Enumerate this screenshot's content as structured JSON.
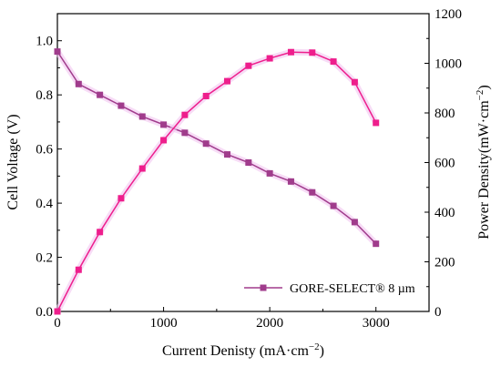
{
  "chart_data": {
    "type": "line",
    "title": "",
    "xlabel": "Current Denisty (mA·cm",
    "xlabel_sup": "−2",
    "xlabel_end": ")",
    "ylabel_left": "Cell Voltage (V)",
    "ylabel_right": "Power Density(mW·cm",
    "ylabel_right_sup": "−2",
    "ylabel_right_end": ")",
    "xlim": [
      0,
      3500
    ],
    "ylim_left": [
      0.0,
      1.1
    ],
    "ylim_right": [
      0,
      1200
    ],
    "x_ticks": [
      0,
      1000,
      2000,
      3000
    ],
    "x_tick_labels": [
      "0",
      "1000",
      "2000",
      "3000"
    ],
    "y_left_ticks": [
      0.0,
      0.2,
      0.4,
      0.6,
      0.8,
      1.0
    ],
    "y_left_tick_labels": [
      "0.0",
      "0.2",
      "0.4",
      "0.6",
      "0.8",
      "1.0"
    ],
    "y_right_ticks": [
      0,
      200,
      400,
      600,
      800,
      1000,
      1200
    ],
    "y_right_tick_labels": [
      "0",
      "200",
      "400",
      "600",
      "800",
      "1000",
      "1200"
    ],
    "legend": {
      "position": "lower-right",
      "label": "GORE-SELECT® 8 µm"
    },
    "series": [
      {
        "name": "GORE-SELECT® 8 µm",
        "axis": "left",
        "color": "#a03c8c",
        "marker": "square",
        "x": [
          0,
          200,
          400,
          600,
          800,
          1000,
          1200,
          1400,
          1600,
          1800,
          2000,
          2200,
          2400,
          2600,
          2800,
          3000
        ],
        "y": [
          0.96,
          0.84,
          0.8,
          0.76,
          0.72,
          0.69,
          0.66,
          0.62,
          0.58,
          0.55,
          0.51,
          0.48,
          0.44,
          0.39,
          0.33,
          0.25
        ]
      },
      {
        "axis": "right",
        "color": "#ee1e8c",
        "marker": "square",
        "x": [
          0,
          200,
          400,
          600,
          800,
          1000,
          1200,
          1400,
          1600,
          1800,
          2000,
          2200,
          2400,
          2600,
          2800,
          3000
        ],
        "y": [
          0,
          168,
          320,
          456,
          576,
          690,
          792,
          868,
          928,
          990,
          1020,
          1045,
          1043,
          1007,
          924,
          760
        ]
      }
    ],
    "colors": {
      "highlight": "#f2c4f0"
    }
  }
}
